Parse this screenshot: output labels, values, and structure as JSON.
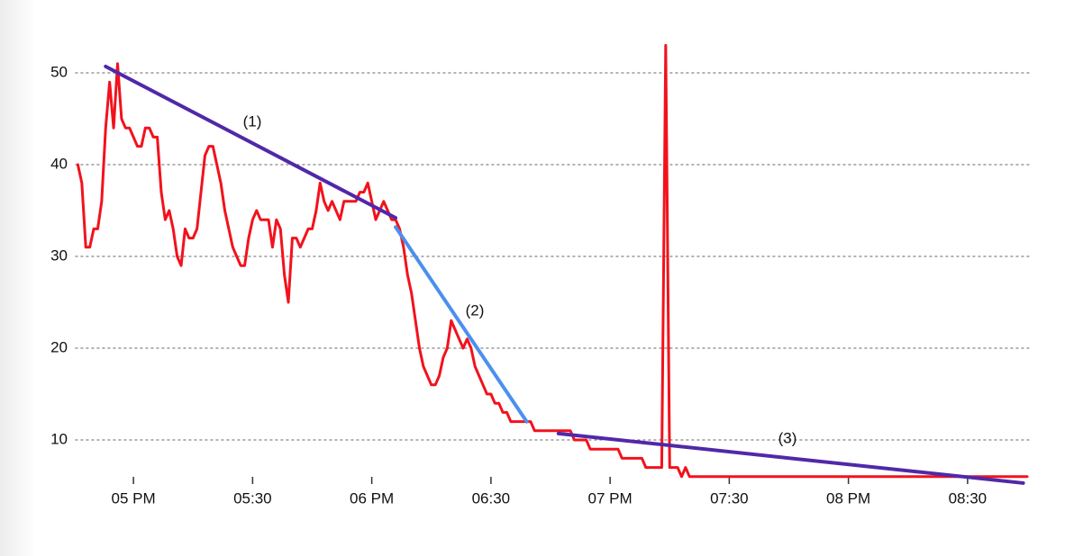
{
  "chart_data": {
    "type": "line",
    "xlim": [
      "16:46",
      "20:45"
    ],
    "xticks": [
      {
        "value": "17:00",
        "label": "05 PM"
      },
      "05:30",
      {
        "value": "18:00",
        "label": "06 PM"
      },
      "06:30",
      {
        "value": "19:00",
        "label": "07 PM"
      },
      "07:30",
      {
        "value": "20:00",
        "label": "08 PM"
      },
      "08:30"
    ],
    "ylim": [
      5,
      54
    ],
    "yticks": [
      10,
      20,
      30,
      40,
      50
    ],
    "grid": true,
    "annotations": [
      "(1)",
      "(2)",
      "(3)"
    ],
    "series": [
      {
        "color": "#f2121c",
        "x": [
          "16:46",
          "16:47",
          "16:48",
          "16:49",
          "16:50",
          "16:51",
          "16:52",
          "16:53",
          "16:54",
          "16:55",
          "16:56",
          "16:57",
          "16:58",
          "16:59",
          "17:00",
          "17:01",
          "17:02",
          "17:03",
          "17:04",
          "17:05",
          "17:06",
          "17:07",
          "17:08",
          "17:09",
          "17:10",
          "17:11",
          "17:12",
          "17:13",
          "17:14",
          "17:15",
          "17:16",
          "17:17",
          "17:18",
          "17:19",
          "17:20",
          "17:21",
          "17:22",
          "17:23",
          "17:24",
          "17:25",
          "17:26",
          "17:27",
          "17:28",
          "17:29",
          "17:30",
          "17:31",
          "17:32",
          "17:33",
          "17:34",
          "17:35",
          "17:36",
          "17:37",
          "17:38",
          "17:39",
          "17:40",
          "17:41",
          "17:42",
          "17:43",
          "17:44",
          "17:45",
          "17:46",
          "17:47",
          "17:48",
          "17:49",
          "17:50",
          "17:51",
          "17:52",
          "17:53",
          "17:54",
          "17:55",
          "17:56",
          "17:57",
          "17:58",
          "17:59",
          "18:00",
          "18:01",
          "18:02",
          "18:03",
          "18:04",
          "18:05",
          "18:06",
          "18:07",
          "18:08",
          "18:09",
          "18:10",
          "18:11",
          "18:12",
          "18:13",
          "18:14",
          "18:15",
          "18:16",
          "18:17",
          "18:18",
          "18:19",
          "18:20",
          "18:21",
          "18:22",
          "18:23",
          "18:24",
          "18:25",
          "18:26",
          "18:27",
          "18:28",
          "18:29",
          "18:30",
          "18:31",
          "18:32",
          "18:33",
          "18:34",
          "18:35",
          "18:40",
          "18:41",
          "18:50",
          "18:51",
          "18:54",
          "18:55",
          "19:02",
          "19:03",
          "19:08",
          "19:09",
          "19:13",
          "19:14",
          "19:15",
          "19:17",
          "19:18",
          "19:19",
          "19:20",
          "20:45"
        ],
        "values": [
          40,
          38,
          31,
          31,
          33,
          33,
          36,
          44,
          49,
          44,
          51,
          45,
          44,
          44,
          43,
          42,
          42,
          44,
          44,
          43,
          43,
          37,
          34,
          35,
          33,
          30,
          29,
          33,
          32,
          32,
          33,
          37,
          41,
          42,
          42,
          40,
          38,
          35,
          33,
          31,
          30,
          29,
          29,
          32,
          34,
          35,
          34,
          34,
          34,
          31,
          34,
          33,
          28,
          25,
          32,
          32,
          31,
          32,
          33,
          33,
          35,
          38,
          36,
          35,
          36,
          35,
          34,
          36,
          36,
          36,
          36,
          37,
          37,
          38,
          36,
          34,
          35,
          36,
          35,
          34,
          34,
          33,
          31,
          28,
          26,
          23,
          20,
          18,
          17,
          16,
          16,
          17,
          19,
          20,
          23,
          22,
          21,
          20,
          21,
          20,
          18,
          17,
          16,
          15,
          15,
          14,
          14,
          13,
          13,
          12,
          12,
          11,
          11,
          10,
          10,
          9,
          9,
          8,
          8,
          7,
          7,
          53,
          7,
          7,
          6,
          7,
          6,
          6
        ]
      },
      {
        "color": "#5128a8",
        "x": [
          "16:53",
          "18:06"
        ],
        "values": [
          50.7,
          34.2
        ]
      },
      {
        "color": "#4b90ee",
        "x": [
          "18:06",
          "18:39"
        ],
        "values": [
          33.2,
          12
        ]
      },
      {
        "color": "#5128a8",
        "x": [
          "18:47",
          "20:44"
        ],
        "values": [
          10.7,
          5.3
        ]
      }
    ]
  }
}
